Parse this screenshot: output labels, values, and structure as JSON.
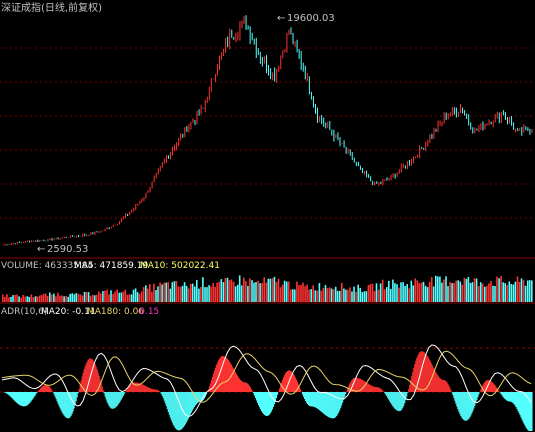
{
  "title": "深证成指(日线,前复权)",
  "colors": {
    "background": "#000000",
    "up": "#ff3333",
    "down": "#54ffff",
    "grid": "#7a0000",
    "title": "#c0c0c0",
    "volume_label": "#c0c0c0",
    "ma5": "#ffffff",
    "ma10": "#ffff66",
    "adr_line1": "#ffffff",
    "adr_line2": "#e8d36a",
    "adr_neg": "#ff33cc"
  },
  "price_panel": {
    "high_label": "19600.03",
    "low_label": "2590.53",
    "high_marker": "←",
    "low_marker": "←"
  },
  "volume_panel": {
    "volume_label": "VOLUME: 463335.84",
    "ma5_label": "MA5: 471859.19",
    "ma10_label": "MA10: 502022.41"
  },
  "adr_panel": {
    "name_label": "ADR(10,6)",
    "ma20_label": "MA20: -0.11",
    "ma180_label": "MA180: 0.06",
    "extra_label": "-0.15"
  },
  "chart_data": [
    {
      "type": "line",
      "title": "深证成指(日线,前复权)",
      "series": [
        {
          "values": [
            2590,
            2750,
            2900,
            2950,
            3100,
            3250,
            3400,
            3700,
            4300,
            5200,
            6500,
            8500,
            10200,
            11800,
            13000,
            16500,
            18800,
            19600,
            17000,
            15500,
            19000,
            16200,
            12500,
            11200,
            9800,
            8300,
            7200,
            7600,
            8600,
            9600,
            11000,
            12500,
            13100,
            11300,
            12100,
            12700,
            11200,
            11500
          ]
        }
      ]
    },
    {
      "type": "bar",
      "series": [
        {
          "values": [
            0.3,
            0.25,
            0.28,
            0.35,
            0.3,
            0.38,
            0.45,
            0.42,
            0.6,
            0.75,
            0.7,
            0.85,
            0.78,
            0.95,
            0.82,
            0.9,
            0.7,
            0.65,
            0.72,
            0.6,
            0.58,
            0.8,
            0.76,
            0.92,
            0.88,
            1.0,
            0.86,
            0.9,
            0.84,
            0.95
          ]
        }
      ]
    },
    {
      "type": "area",
      "series": [
        {
          "values": [
            0.0,
            -0.3,
            0.15,
            -0.55,
            0.7,
            -0.35,
            0.2,
            0.05,
            -0.8,
            -0.2,
            0.75,
            0.2,
            -0.5,
            0.45,
            -0.3,
            -0.55,
            0.3,
            0.1,
            -0.4,
            0.85,
            0.25,
            -0.6,
            0.25,
            -0.2,
            -0.85
          ]
        }
      ]
    }
  ]
}
